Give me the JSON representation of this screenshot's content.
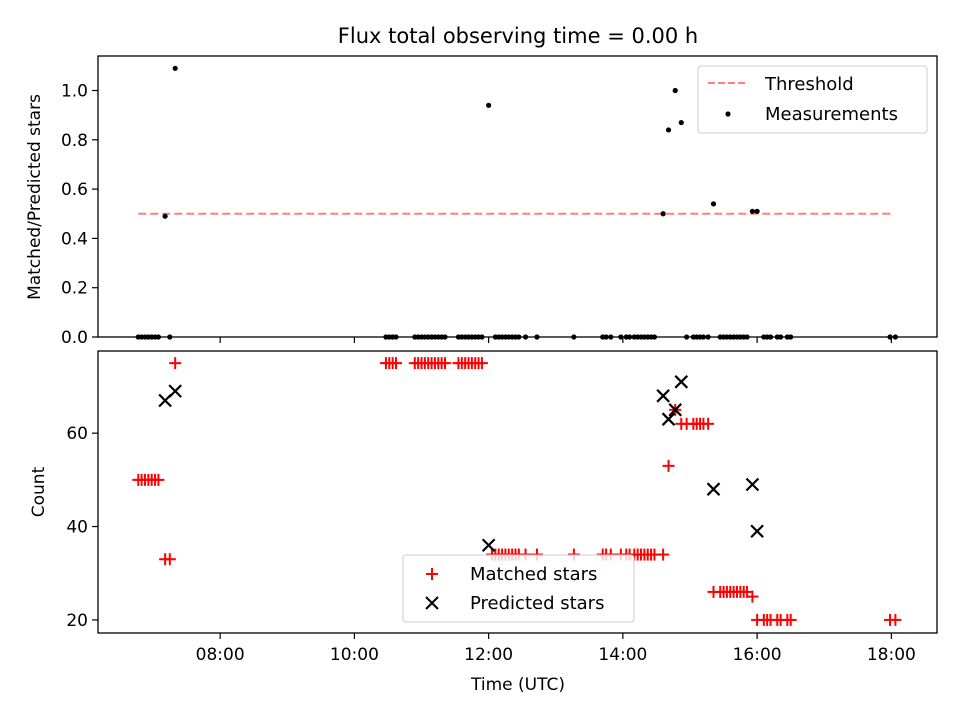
{
  "figure": {
    "title": "Flux total observing time = 0.00 h"
  },
  "chart_data": [
    {
      "type": "scatter",
      "ylabel": "Matched/Predicted stars",
      "xlim": [
        6.18,
        18.68
      ],
      "ylim": [
        0,
        1.14
      ],
      "yticks": [
        0.0,
        0.2,
        0.4,
        0.6,
        0.8,
        1.0
      ],
      "ytick_labels": [
        "0.0",
        "0.2",
        "0.4",
        "0.6",
        "0.8",
        "1.0"
      ],
      "xticks": [
        8,
        10,
        12,
        14,
        16,
        18
      ],
      "legend": {
        "position": "top-right",
        "entries": [
          "Threshold",
          "Measurements"
        ]
      },
      "threshold": {
        "name": "Threshold",
        "value": 0.5,
        "x": [
          6.78,
          18.03
        ],
        "color": "#ff7f7f"
      },
      "series": [
        {
          "name": "Measurements",
          "color": "#000000",
          "x": [
            6.78,
            6.83,
            6.88,
            6.93,
            6.98,
            7.03,
            7.08,
            7.18,
            7.25,
            7.33,
            10.47,
            10.52,
            10.57,
            10.62,
            10.9,
            10.95,
            11.0,
            11.05,
            11.1,
            11.15,
            11.2,
            11.25,
            11.3,
            11.35,
            11.55,
            11.6,
            11.65,
            11.7,
            11.75,
            11.8,
            11.85,
            11.9,
            12.0,
            12.1,
            12.15,
            12.2,
            12.25,
            12.3,
            12.35,
            12.4,
            12.45,
            12.55,
            12.72,
            13.27,
            13.7,
            13.75,
            13.82,
            13.97,
            14.05,
            14.1,
            14.17,
            14.22,
            14.27,
            14.32,
            14.37,
            14.42,
            14.47,
            14.6,
            14.68,
            14.78,
            14.87,
            14.95,
            15.05,
            15.1,
            15.15,
            15.2,
            15.27,
            15.35,
            15.45,
            15.5,
            15.55,
            15.6,
            15.65,
            15.7,
            15.75,
            15.8,
            15.85,
            15.93,
            16.0,
            16.1,
            16.15,
            16.2,
            16.3,
            16.35,
            16.45,
            16.5,
            17.98,
            18.06
          ],
          "y": [
            0,
            0,
            0,
            0,
            0,
            0,
            0,
            0.49,
            0,
            1.09,
            0,
            0,
            0,
            0,
            0,
            0,
            0,
            0,
            0,
            0,
            0,
            0,
            0,
            0,
            0,
            0,
            0,
            0,
            0,
            0,
            0,
            0,
            0.94,
            0,
            0,
            0,
            0,
            0,
            0,
            0,
            0,
            0,
            0,
            0,
            0,
            0,
            0,
            0,
            0,
            0,
            0,
            0,
            0,
            0,
            0,
            0,
            0,
            0.5,
            0.84,
            1.0,
            0.87,
            0,
            0,
            0,
            0,
            0,
            0,
            0.54,
            0,
            0,
            0,
            0,
            0,
            0,
            0,
            0,
            0,
            0.51,
            0.51,
            0,
            0,
            0,
            0,
            0,
            0,
            0,
            0,
            0
          ]
        }
      ]
    },
    {
      "type": "scatter",
      "xlabel": "Time (UTC)",
      "ylabel": "Count",
      "xlim": [
        6.18,
        18.68
      ],
      "ylim": [
        17.2,
        77.6
      ],
      "yticks": [
        20,
        40,
        60
      ],
      "ytick_labels": [
        "20",
        "40",
        "60"
      ],
      "xticks": [
        8,
        10,
        12,
        14,
        16,
        18
      ],
      "xtick_labels": [
        "08:00",
        "10:00",
        "12:00",
        "14:00",
        "16:00",
        "18:00"
      ],
      "legend": {
        "position": "lower-center",
        "entries": [
          "Matched stars",
          "Predicted stars"
        ]
      },
      "series": [
        {
          "name": "Matched stars",
          "marker": "plus",
          "color": "#ff0000",
          "x": [
            6.78,
            6.83,
            6.88,
            6.93,
            6.98,
            7.03,
            7.08,
            7.18,
            7.25,
            7.33,
            10.47,
            10.52,
            10.57,
            10.62,
            10.9,
            10.95,
            11.0,
            11.05,
            11.1,
            11.15,
            11.2,
            11.25,
            11.3,
            11.35,
            11.55,
            11.6,
            11.65,
            11.7,
            11.75,
            11.8,
            11.85,
            11.9,
            12.05,
            12.1,
            12.15,
            12.2,
            12.25,
            12.3,
            12.35,
            12.4,
            12.45,
            12.55,
            12.72,
            13.27,
            13.7,
            13.75,
            13.82,
            13.97,
            14.05,
            14.1,
            14.17,
            14.22,
            14.27,
            14.32,
            14.37,
            14.42,
            14.47,
            14.6,
            14.68,
            14.78,
            14.87,
            14.95,
            15.05,
            15.1,
            15.15,
            15.2,
            15.27,
            15.35,
            15.45,
            15.5,
            15.55,
            15.6,
            15.65,
            15.7,
            15.75,
            15.8,
            15.85,
            15.93,
            16.0,
            16.1,
            16.15,
            16.2,
            16.3,
            16.35,
            16.45,
            16.5,
            17.98,
            18.06
          ],
          "y": [
            50,
            50,
            50,
            50,
            50,
            50,
            50,
            33,
            33,
            75,
            75,
            75,
            75,
            75,
            75,
            75,
            75,
            75,
            75,
            75,
            75,
            75,
            75,
            75,
            75,
            75,
            75,
            75,
            75,
            75,
            75,
            75,
            34,
            34,
            34,
            34,
            34,
            34,
            34,
            34,
            34,
            34,
            34,
            34,
            34,
            34,
            34,
            34,
            34,
            34,
            34,
            34,
            34,
            34,
            34,
            34,
            34,
            34,
            53,
            65,
            62,
            62,
            62,
            62,
            62,
            62,
            62,
            26,
            26,
            26,
            26,
            26,
            26,
            26,
            26,
            26,
            26,
            25,
            20,
            20,
            20,
            20,
            20,
            20,
            20,
            20,
            20,
            20
          ]
        },
        {
          "name": "Predicted stars",
          "marker": "x",
          "color": "#000000",
          "x": [
            7.18,
            7.33,
            12.0,
            14.6,
            14.68,
            14.78,
            14.87,
            15.35,
            15.93,
            16.0
          ],
          "y": [
            67,
            69,
            36,
            68,
            63,
            65,
            71,
            48,
            49,
            39
          ]
        }
      ]
    }
  ]
}
